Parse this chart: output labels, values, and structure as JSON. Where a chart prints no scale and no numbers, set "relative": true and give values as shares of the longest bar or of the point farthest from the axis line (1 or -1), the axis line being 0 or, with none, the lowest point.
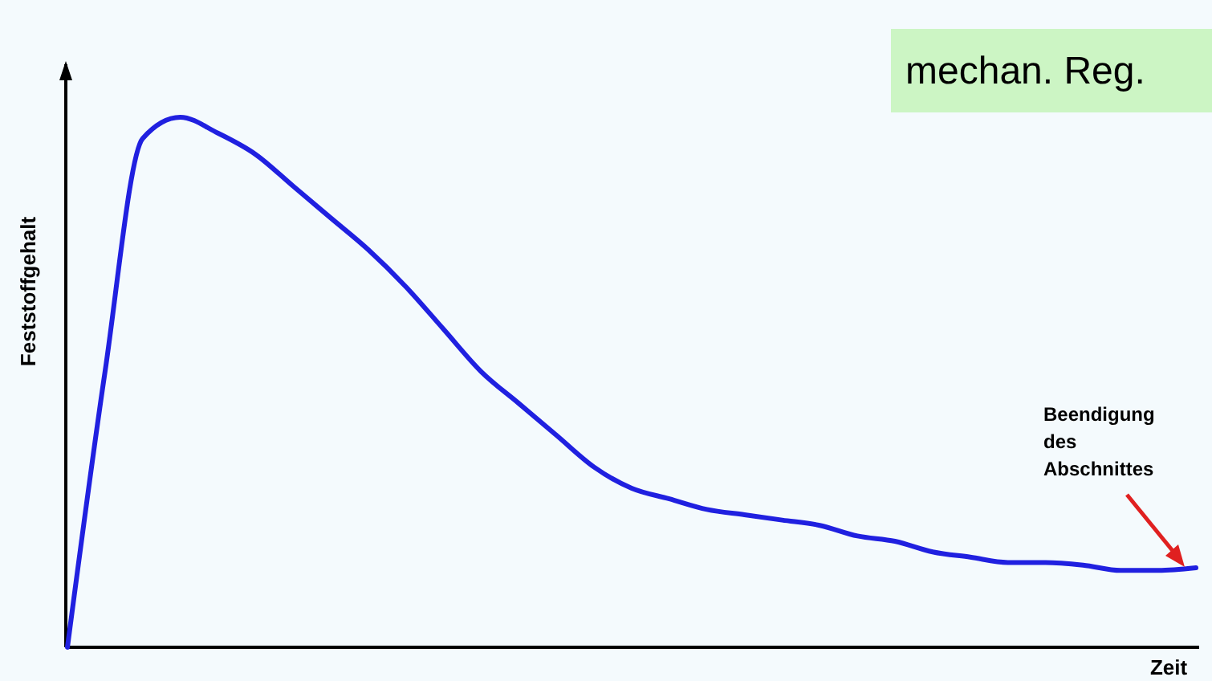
{
  "chart_data": {
    "type": "line",
    "relative": true,
    "xlabel": "Zeit",
    "ylabel": "Feststoffgehalt",
    "annotations": [
      "Beendigung des Abschnittes",
      "mechan. Reg."
    ],
    "categories": [
      null,
      null,
      null,
      null,
      null,
      null,
      null,
      null,
      null,
      null,
      null,
      null,
      null,
      null,
      null,
      null,
      null,
      null,
      null,
      null,
      null,
      null,
      null,
      null,
      null,
      null,
      null,
      null,
      null,
      null,
      null
    ],
    "series": [
      {
        "color": "#2020e0",
        "values": [
          0,
          0.52,
          0.96,
          1,
          0.97,
          0.93,
          0.87,
          0.81,
          0.75,
          0.68,
          0.6,
          0.52,
          0.46,
          0.4,
          0.34,
          0.3,
          0.28,
          0.26,
          0.25,
          0.24,
          0.23,
          0.21,
          0.2,
          0.18,
          0.17,
          0.16,
          0.16,
          0.155,
          0.145,
          0.145,
          0.15
        ]
      }
    ],
    "line_style": "solid"
  }
}
